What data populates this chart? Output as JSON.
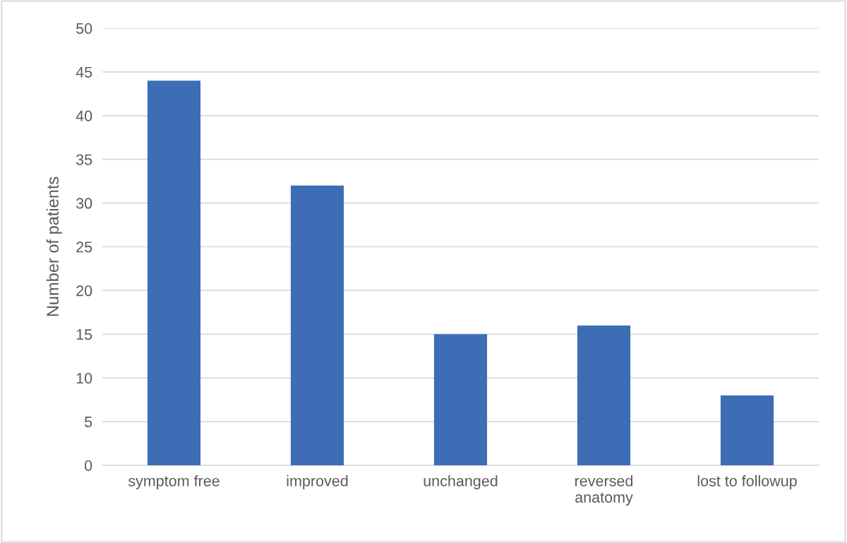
{
  "chart_data": {
    "type": "bar",
    "ylabel": "Number of patients",
    "categories": [
      "symptom free",
      "improved",
      "unchanged",
      "reversed\nanatomy",
      "lost to followup"
    ],
    "values": [
      44,
      32,
      15,
      16,
      8
    ],
    "color": "#3d6db4",
    "ylim": [
      0,
      50
    ],
    "yticks": [
      0,
      5,
      10,
      15,
      20,
      25,
      30,
      35,
      40,
      45,
      50
    ],
    "grid": "y",
    "legend": false
  }
}
